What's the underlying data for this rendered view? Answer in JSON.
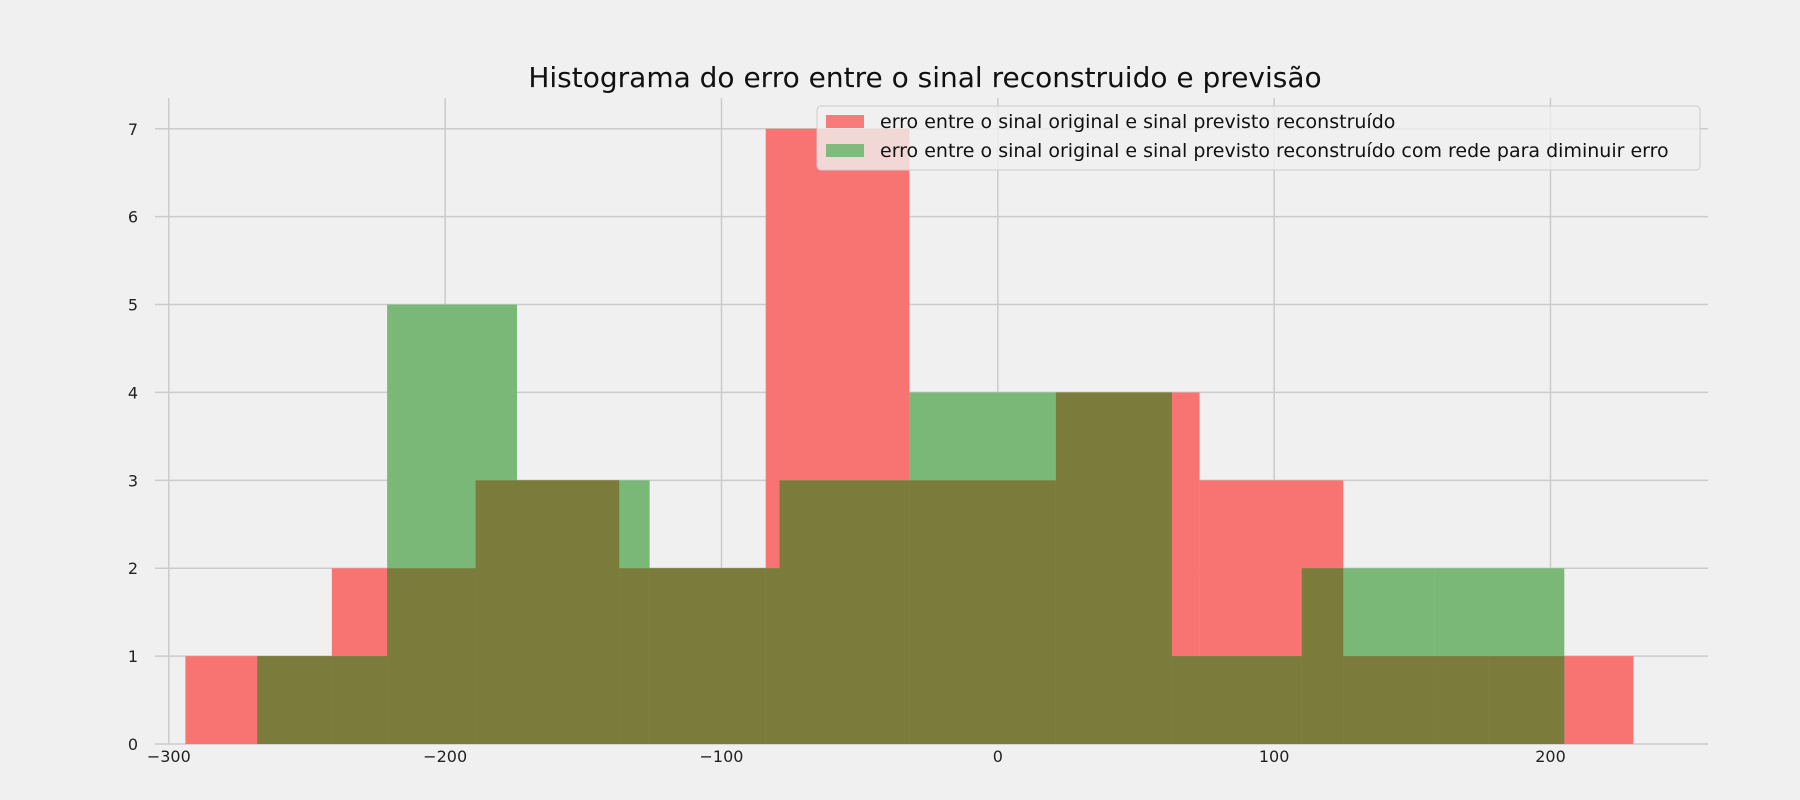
{
  "chart_data": {
    "type": "bar",
    "title": "Histograma do erro entre o sinal reconstruido e previsão",
    "xlabel": "",
    "ylabel": "",
    "xlim": [
      -305,
      257
    ],
    "ylim": [
      0,
      7.35
    ],
    "xticks": [
      -300,
      -200,
      -100,
      0,
      100,
      200
    ],
    "xtick_labels": [
      "−300",
      "−200",
      "−100",
      "0",
      "100",
      "200"
    ],
    "yticks": [
      0,
      1,
      2,
      3,
      4,
      5,
      6,
      7
    ],
    "ytick_labels": [
      "0",
      "1",
      "2",
      "3",
      "4",
      "5",
      "6",
      "7"
    ],
    "grid": true,
    "legend_position": "top-right",
    "series": [
      {
        "name": "erro entre o sinal original e sinal previsto reconstruído",
        "color": "#f77473",
        "bins": [
          {
            "x0": -294,
            "x1": -241,
            "count": 1
          },
          {
            "x0": -241,
            "x1": -189,
            "count": 2
          },
          {
            "x0": -189,
            "x1": -137,
            "count": 3
          },
          {
            "x0": -137,
            "x1": -84,
            "count": 2
          },
          {
            "x0": -84,
            "x1": -32,
            "count": 7
          },
          {
            "x0": -32,
            "x1": 21,
            "count": 3
          },
          {
            "x0": 21,
            "x1": 73,
            "count": 4
          },
          {
            "x0": 73,
            "x1": 125,
            "count": 3
          },
          {
            "x0": 125,
            "x1": 178,
            "count": 1
          },
          {
            "x0": 178,
            "x1": 230,
            "count": 1
          }
        ]
      },
      {
        "name": "erro entre o sinal original e sinal previsto reconstruído com rede para diminuir erro",
        "color": "#7ab878",
        "bins": [
          {
            "x0": -268,
            "x1": -221,
            "count": 1
          },
          {
            "x0": -221,
            "x1": -174,
            "count": 5
          },
          {
            "x0": -174,
            "x1": -126,
            "count": 3
          },
          {
            "x0": -126,
            "x1": -79,
            "count": 2
          },
          {
            "x0": -79,
            "x1": -32,
            "count": 3
          },
          {
            "x0": -32,
            "x1": 21,
            "count": 4
          },
          {
            "x0": 21,
            "x1": 63,
            "count": 4
          },
          {
            "x0": 63,
            "x1": 110,
            "count": 1
          },
          {
            "x0": 110,
            "x1": 158,
            "count": 2
          },
          {
            "x0": 158,
            "x1": 205,
            "count": 2
          }
        ]
      }
    ],
    "overlap_color": "#7b7b3b"
  }
}
